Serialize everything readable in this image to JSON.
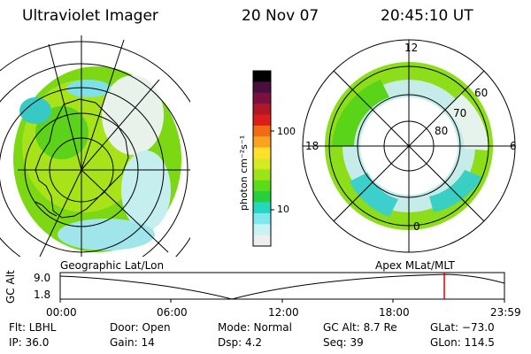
{
  "header": {
    "instrument": "Ultraviolet Imager",
    "date": "20 Nov 07",
    "time": "20:45:10 UT"
  },
  "left_panel": {
    "label": "Geographic Lat/Lon"
  },
  "right_panel": {
    "label": "Apex  MLat/MLT",
    "mlt_labels": {
      "top": "12",
      "left": "18",
      "right": "6",
      "bottom": "0"
    },
    "lat_labels": [
      "60",
      "70",
      "80"
    ]
  },
  "colorbar": {
    "unit_label": "photon cm⁻²s⁻¹",
    "ticks": [
      "100",
      "10"
    ],
    "colors": [
      "#000000",
      "#4a0f3e",
      "#7a1240",
      "#b01826",
      "#dd1c1c",
      "#f26a16",
      "#f9a321",
      "#fde12a",
      "#d4ea23",
      "#9ce318",
      "#5bdc16",
      "#28cf3c",
      "#25d7bf",
      "#7fe8ee",
      "#c9f2f2",
      "#eeeeee"
    ]
  },
  "altitude_plot": {
    "ylabel": "GC Alt",
    "yticks": [
      "9.0",
      "1.8"
    ],
    "xticks": [
      "00:00",
      "06:00",
      "12:00",
      "18:00",
      "23:59"
    ],
    "marker_color": "#e00000"
  },
  "footer": {
    "filter": "Flt: LBHL",
    "ip": "IP: 36.0",
    "door": "Door: Open",
    "gain": "Gain: 14",
    "mode": "Mode: Normal",
    "dsp": "Dsp:    4.2",
    "gc_alt": "GC Alt: 8.7 Re",
    "seq": "Seq: 39",
    "glat": "GLat: −73.0",
    "glon": "GLon: 114.5"
  }
}
